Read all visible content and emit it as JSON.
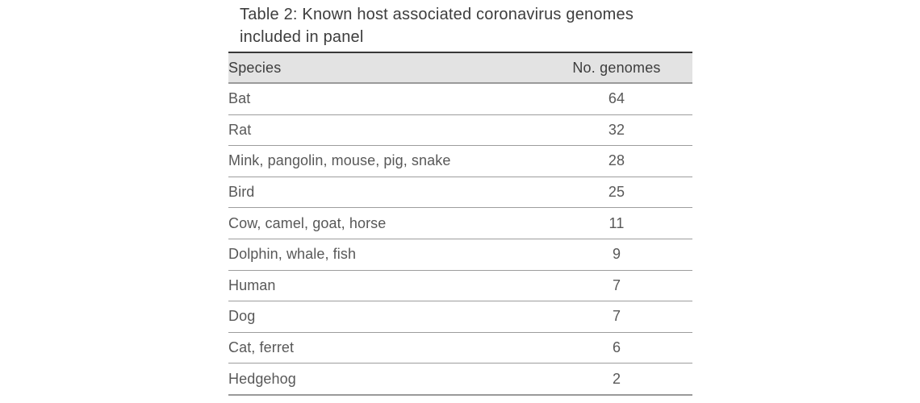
{
  "chart_data": {
    "type": "table",
    "title": "Table 2: Known host associated coronavirus genomes included in panel",
    "columns": [
      "Species",
      "No. genomes"
    ],
    "rows": [
      [
        "Bat",
        64
      ],
      [
        "Rat",
        32
      ],
      [
        "Mink, pangolin, mouse, pig, snake",
        28
      ],
      [
        "Bird",
        25
      ],
      [
        "Cow, camel, goat, horse",
        11
      ],
      [
        "Dolphin, whale, fish",
        9
      ],
      [
        "Human",
        7
      ],
      [
        "Dog",
        7
      ],
      [
        "Cat, ferret",
        6
      ],
      [
        "Hedgehog",
        2
      ]
    ]
  },
  "colors": {
    "header_bg": "#e3e3e3",
    "top_border": "#383838",
    "strong_divider": "#9a9a9a",
    "divider": "#9d9d9d",
    "title_color": "#3d3d3d",
    "header_text": "#3d3d3d",
    "cell_text": "#585858",
    "page_bg": "#ffffff"
  }
}
